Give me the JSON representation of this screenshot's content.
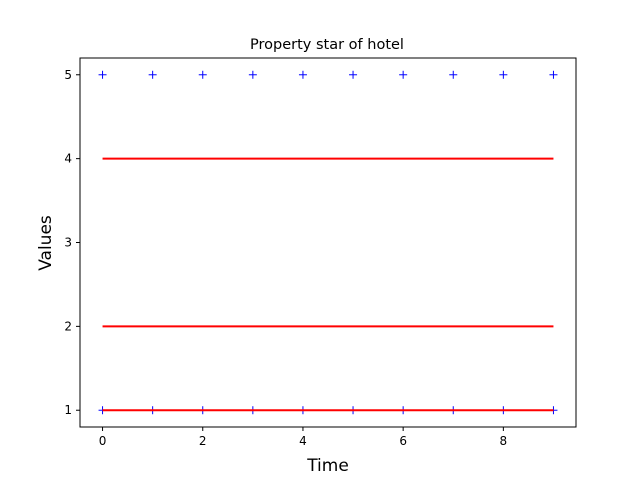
{
  "chart_data": {
    "type": "line",
    "title": "Property star of hotel",
    "xlabel": "Time",
    "ylabel": "Values",
    "xlim": [
      -0.45,
      9.45
    ],
    "ylim": [
      0.8,
      5.2
    ],
    "xticks": [
      0,
      2,
      4,
      6,
      8
    ],
    "yticks": [
      1,
      2,
      3,
      4,
      5
    ],
    "grid": false,
    "legend": "none",
    "x": [
      0,
      1,
      2,
      3,
      4,
      5,
      6,
      7,
      8,
      9
    ],
    "series": [
      {
        "style": "markers",
        "marker": "plus",
        "color": "#0000ff",
        "values": [
          5,
          5,
          5,
          5,
          5,
          5,
          5,
          5,
          5,
          5
        ]
      },
      {
        "style": "markers",
        "marker": "plus",
        "color": "#0000ff",
        "values": [
          1,
          1,
          1,
          1,
          1,
          1,
          1,
          1,
          1,
          1
        ]
      },
      {
        "style": "line",
        "color": "#ff0000",
        "values": [
          4,
          4,
          4,
          4,
          4,
          4,
          4,
          4,
          4,
          4
        ]
      },
      {
        "style": "line",
        "color": "#ff0000",
        "values": [
          2,
          2,
          2,
          2,
          2,
          2,
          2,
          2,
          2,
          2
        ]
      },
      {
        "style": "line",
        "color": "#ff0000",
        "values": [
          1,
          1,
          1,
          1,
          1,
          1,
          1,
          1,
          1,
          1
        ]
      }
    ]
  }
}
